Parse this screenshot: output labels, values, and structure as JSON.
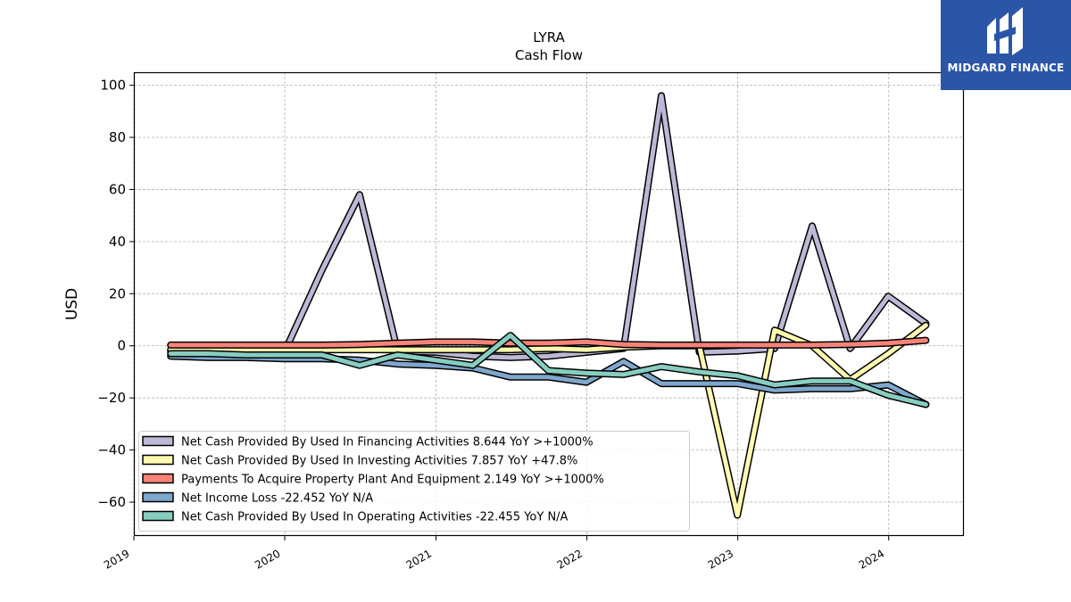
{
  "brand": {
    "name": "MIDGARD FINANCE",
    "bg_color": "#2b56a8"
  },
  "chart_data": {
    "type": "line",
    "title": "LYRA",
    "subtitle": "Cash Flow",
    "ylabel": "USD",
    "xlabel": "",
    "ylim": [
      -73,
      105
    ],
    "yticks": [
      100,
      80,
      60,
      40,
      20,
      0,
      -20,
      -40,
      -60
    ],
    "ytick_labels": [
      "100",
      "80",
      "60",
      "40",
      "20",
      "0",
      "−20",
      "−40",
      "−60"
    ],
    "xlim": [
      "2019-01-01",
      "2024-07-01"
    ],
    "xticks": [
      "2019-01-01",
      "2020-01-01",
      "2021-01-01",
      "2022-01-01",
      "2023-01-01",
      "2024-01-01"
    ],
    "xtick_labels": [
      "2019",
      "2020",
      "2021",
      "2022",
      "2023",
      "2024"
    ],
    "grid": true,
    "legend_position": "lower-left",
    "x": [
      "2019-03-31",
      "2019-06-30",
      "2019-09-30",
      "2019-12-31",
      "2020-03-31",
      "2020-06-30",
      "2020-09-30",
      "2020-12-31",
      "2021-03-31",
      "2021-06-30",
      "2021-09-30",
      "2021-12-31",
      "2022-03-31",
      "2022-06-30",
      "2022-09-30",
      "2022-12-31",
      "2023-03-31",
      "2023-06-30",
      "2023-09-30",
      "2023-12-31",
      "2024-03-31"
    ],
    "series": [
      {
        "name": "Net Cash Provided By Used In Financing Activities",
        "legend": "Net Cash Provided By Used In Financing Activities  8.644 YoY >+1000%",
        "color": "#bcb8d6",
        "values": [
          -2,
          -2.5,
          -3,
          -2.5,
          29,
          58,
          -2,
          -2.5,
          -4,
          -4.5,
          -4,
          -2.5,
          -1,
          96,
          -2.5,
          -2,
          -1,
          46,
          -1,
          19,
          8.6
        ]
      },
      {
        "name": "Net Cash Provided By Used In Investing Activities",
        "legend": "Net Cash Provided By Used In Investing Activities  7.857 YoY +47.8%",
        "color": "#fffab0",
        "values": [
          -1.5,
          -1.5,
          -1.5,
          -1.5,
          -1.5,
          -1.5,
          -1.5,
          -1.5,
          -1.5,
          -1.5,
          -1,
          -1.5,
          -0.5,
          0,
          0,
          -65,
          6,
          0,
          -13,
          -3,
          7.9
        ]
      },
      {
        "name": "Payments To Acquire Property Plant And Equipment",
        "legend": "Payments To Acquire Property Plant And Equipment  2.149 YoY >+1000%",
        "color": "#f88379",
        "values": [
          0.3,
          0.3,
          0.3,
          0.3,
          0.3,
          0.5,
          1,
          1.5,
          1.5,
          1,
          1,
          1.5,
          0.5,
          0.3,
          0.3,
          0.3,
          0.3,
          0.3,
          0.5,
          1,
          2.1
        ]
      },
      {
        "name": "Net Income Loss",
        "legend": "Net Income Loss  -22.452 YoY N/A",
        "color": "#7fa7cd",
        "values": [
          -4,
          -4.5,
          -4.5,
          -5,
          -5,
          -5.5,
          -7,
          -7.5,
          -8.5,
          -12,
          -12,
          -14,
          -6,
          -14.5,
          -14.5,
          -14.5,
          -17,
          -16.5,
          -16.5,
          -15,
          -22.5
        ]
      },
      {
        "name": "Net Cash Provided By Used In Operating Activities",
        "legend": "Net Cash Provided By Used In Operating Activities  -22.455 YoY N/A",
        "color": "#87cdc0",
        "values": [
          -3,
          -3,
          -3.5,
          -3.5,
          -3.5,
          -7.5,
          -3.5,
          -5.5,
          -7.5,
          4,
          -9.5,
          -10.5,
          -11,
          -8,
          -10,
          -11.5,
          -15,
          -13.5,
          -13.5,
          -19,
          -22.5
        ]
      }
    ]
  }
}
